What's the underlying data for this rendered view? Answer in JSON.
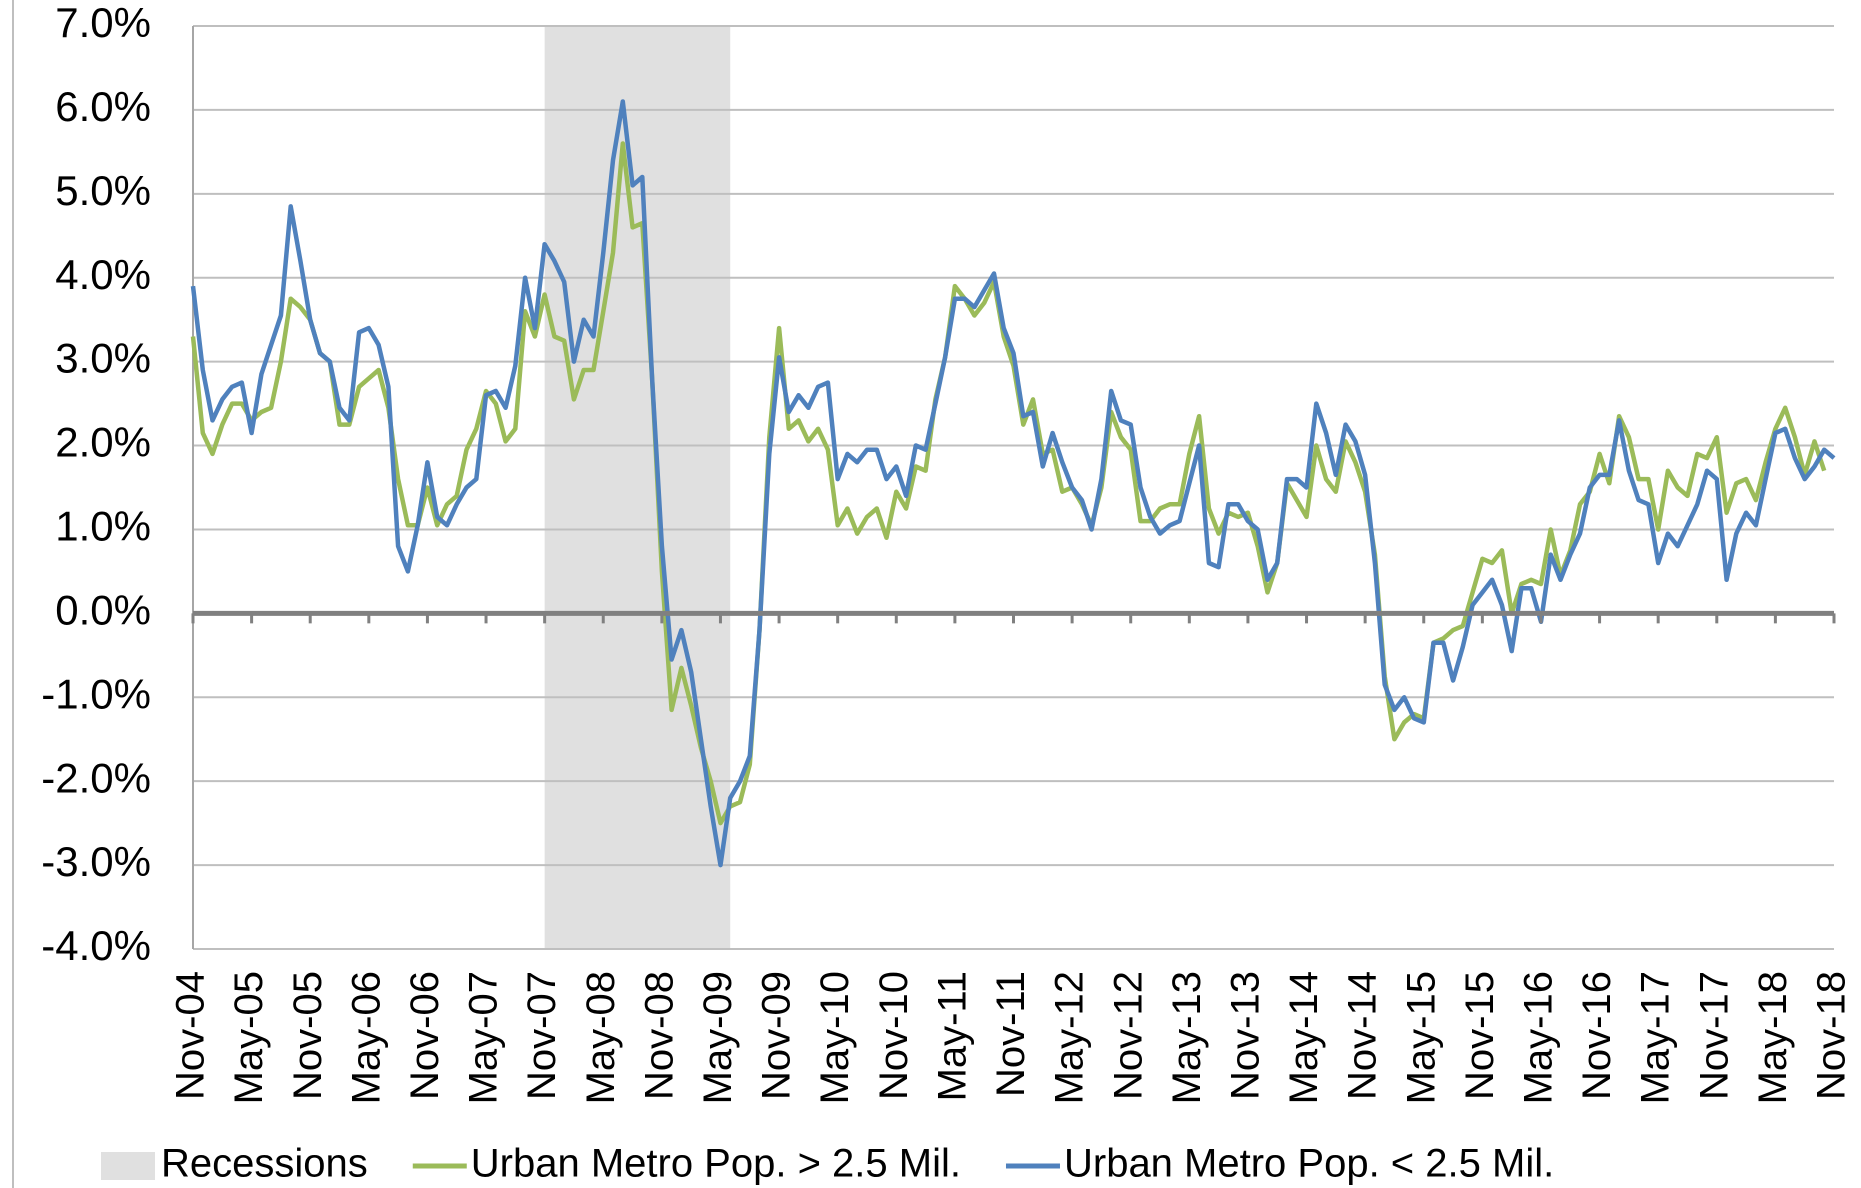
{
  "chart_data": {
    "type": "line",
    "categories": [
      "Nov-04",
      null,
      null,
      null,
      null,
      null,
      "May-05",
      null,
      null,
      null,
      null,
      null,
      "Nov-05",
      null,
      null,
      null,
      null,
      null,
      "May-06",
      null,
      null,
      null,
      null,
      null,
      "Nov-06",
      null,
      null,
      null,
      null,
      null,
      "May-07",
      null,
      null,
      null,
      null,
      null,
      "Nov-07",
      null,
      null,
      null,
      null,
      null,
      "May-08",
      null,
      null,
      null,
      null,
      null,
      "Nov-08",
      null,
      null,
      null,
      null,
      null,
      "May-09",
      null,
      null,
      null,
      null,
      null,
      "Nov-09",
      null,
      null,
      null,
      null,
      null,
      "May-10",
      null,
      null,
      null,
      null,
      null,
      "Nov-10",
      null,
      null,
      null,
      null,
      null,
      "May-11",
      null,
      null,
      null,
      null,
      null,
      "Nov-11",
      null,
      null,
      null,
      null,
      null,
      "May-12",
      null,
      null,
      null,
      null,
      null,
      "Nov-12",
      null,
      null,
      null,
      null,
      null,
      "May-13",
      null,
      null,
      null,
      null,
      null,
      "Nov-13",
      null,
      null,
      null,
      null,
      null,
      "May-14",
      null,
      null,
      null,
      null,
      null,
      "Nov-14",
      null,
      null,
      null,
      null,
      null,
      "May-15",
      null,
      null,
      null,
      null,
      null,
      "Nov-15",
      null,
      null,
      null,
      null,
      null,
      "May-16",
      null,
      null,
      null,
      null,
      null,
      "Nov-16",
      null,
      null,
      null,
      null,
      null,
      "May-17",
      null,
      null,
      null,
      null,
      null,
      "Nov-17",
      null,
      null,
      null,
      null,
      null,
      "May-18",
      null,
      null,
      null,
      null,
      null,
      "Nov-18"
    ],
    "series": [
      {
        "name": "Urban Metro Pop. > 2.5 Mil.",
        "color": "#9bbb59",
        "values": [
          3.3,
          2.15,
          1.9,
          2.25,
          2.5,
          2.5,
          2.3,
          2.4,
          2.45,
          3.0,
          3.75,
          3.65,
          3.5,
          3.1,
          3.0,
          2.25,
          2.25,
          2.7,
          2.8,
          2.9,
          2.45,
          1.6,
          1.05,
          1.05,
          1.5,
          1.05,
          1.3,
          1.4,
          1.95,
          2.2,
          2.65,
          2.5,
          2.05,
          2.2,
          3.6,
          3.3,
          3.8,
          3.3,
          3.25,
          2.55,
          2.9,
          2.9,
          3.6,
          4.3,
          5.6,
          4.6,
          4.65,
          2.8,
          0.5,
          -1.15,
          -0.65,
          -1.1,
          -1.6,
          -2.0,
          -2.5,
          -2.3,
          -2.25,
          -1.8,
          -0.2,
          2.1,
          3.4,
          2.2,
          2.3,
          2.05,
          2.2,
          1.95,
          1.05,
          1.25,
          0.95,
          1.15,
          1.25,
          0.9,
          1.45,
          1.25,
          1.75,
          1.7,
          2.55,
          3.05,
          3.9,
          3.75,
          3.55,
          3.7,
          3.95,
          3.3,
          2.95,
          2.25,
          2.55,
          1.9,
          1.95,
          1.45,
          1.5,
          1.3,
          1.05,
          1.5,
          2.4,
          2.1,
          1.95,
          1.1,
          1.1,
          1.25,
          1.3,
          1.3,
          1.9,
          2.35,
          1.25,
          0.95,
          1.2,
          1.15,
          1.2,
          0.8,
          0.25,
          0.6,
          1.55,
          1.35,
          1.15,
          2.0,
          1.6,
          1.45,
          2.05,
          1.8,
          1.45,
          0.7,
          -0.75,
          -1.5,
          -1.3,
          -1.2,
          -1.25,
          -0.35,
          -0.3,
          -0.2,
          -0.15,
          0.25,
          0.65,
          0.6,
          0.75,
          0.0,
          0.35,
          0.4,
          0.35,
          1.0,
          0.45,
          0.75,
          1.3,
          1.45,
          1.9,
          1.55,
          2.35,
          2.1,
          1.6,
          1.6,
          1.0,
          1.7,
          1.5,
          1.4,
          1.9,
          1.85,
          2.1,
          1.2,
          1.55,
          1.6,
          1.35,
          1.8,
          2.2,
          2.45,
          2.1,
          1.65,
          2.05,
          1.7,
          null
        ]
      },
      {
        "name": "Urban Metro Pop. < 2.5 Mil.",
        "color": "#4f81bd",
        "values": [
          3.9,
          2.9,
          2.3,
          2.55,
          2.7,
          2.75,
          2.15,
          2.85,
          3.2,
          3.55,
          4.85,
          4.2,
          3.5,
          3.1,
          3.0,
          2.45,
          2.3,
          3.35,
          3.4,
          3.2,
          2.7,
          0.8,
          0.5,
          1.05,
          1.8,
          1.15,
          1.05,
          1.3,
          1.5,
          1.6,
          2.6,
          2.65,
          2.45,
          2.95,
          4.0,
          3.4,
          4.4,
          4.2,
          3.95,
          3.0,
          3.5,
          3.3,
          4.3,
          5.4,
          6.1,
          5.1,
          5.2,
          2.8,
          0.8,
          -0.55,
          -0.2,
          -0.7,
          -1.5,
          -2.3,
          -3.0,
          -2.2,
          -2.0,
          -1.7,
          -0.2,
          1.9,
          3.05,
          2.4,
          2.6,
          2.45,
          2.7,
          2.75,
          1.6,
          1.9,
          1.8,
          1.95,
          1.95,
          1.6,
          1.75,
          1.4,
          2.0,
          1.95,
          2.5,
          3.05,
          3.75,
          3.75,
          3.65,
          3.85,
          4.05,
          3.4,
          3.1,
          2.35,
          2.4,
          1.75,
          2.15,
          1.8,
          1.5,
          1.35,
          1.0,
          1.6,
          2.65,
          2.3,
          2.25,
          1.5,
          1.15,
          0.95,
          1.05,
          1.1,
          1.55,
          2.0,
          0.6,
          0.55,
          1.3,
          1.3,
          1.1,
          1.0,
          0.4,
          0.6,
          1.6,
          1.6,
          1.5,
          2.5,
          2.15,
          1.65,
          2.25,
          2.05,
          1.65,
          0.6,
          -0.85,
          -1.15,
          -1.0,
          -1.25,
          -1.3,
          -0.35,
          -0.35,
          -0.8,
          -0.4,
          0.1,
          0.25,
          0.4,
          0.1,
          -0.45,
          0.3,
          0.3,
          -0.1,
          0.7,
          0.4,
          0.7,
          0.95,
          1.5,
          1.65,
          1.65,
          2.3,
          1.7,
          1.35,
          1.3,
          0.6,
          0.95,
          0.8,
          1.05,
          1.3,
          1.7,
          1.6,
          0.4,
          0.95,
          1.2,
          1.05,
          1.6,
          2.15,
          2.2,
          1.85,
          1.6,
          1.75,
          1.95,
          1.85
        ]
      }
    ],
    "recession": {
      "name": "Recessions",
      "color": "#e0e0e0",
      "from": "Nov-07",
      "to": "May-09"
    },
    "ylim": [
      -4,
      7
    ],
    "yticks": [
      {
        "value": -4,
        "label": "-4.0%"
      },
      {
        "value": -3,
        "label": "-3.0%"
      },
      {
        "value": -2,
        "label": "-2.0%"
      },
      {
        "value": -1,
        "label": "-1.0%"
      },
      {
        "value": 0,
        "label": "0.0%"
      },
      {
        "value": 1,
        "label": "1.0%"
      },
      {
        "value": 2,
        "label": "2.0%"
      },
      {
        "value": 3,
        "label": "3.0%"
      },
      {
        "value": 4,
        "label": "4.0%"
      },
      {
        "value": 5,
        "label": "5.0%"
      },
      {
        "value": 6,
        "label": "6.0%"
      },
      {
        "value": 7,
        "label": "7.0%"
      }
    ],
    "grid": true,
    "legend": "bottom"
  }
}
